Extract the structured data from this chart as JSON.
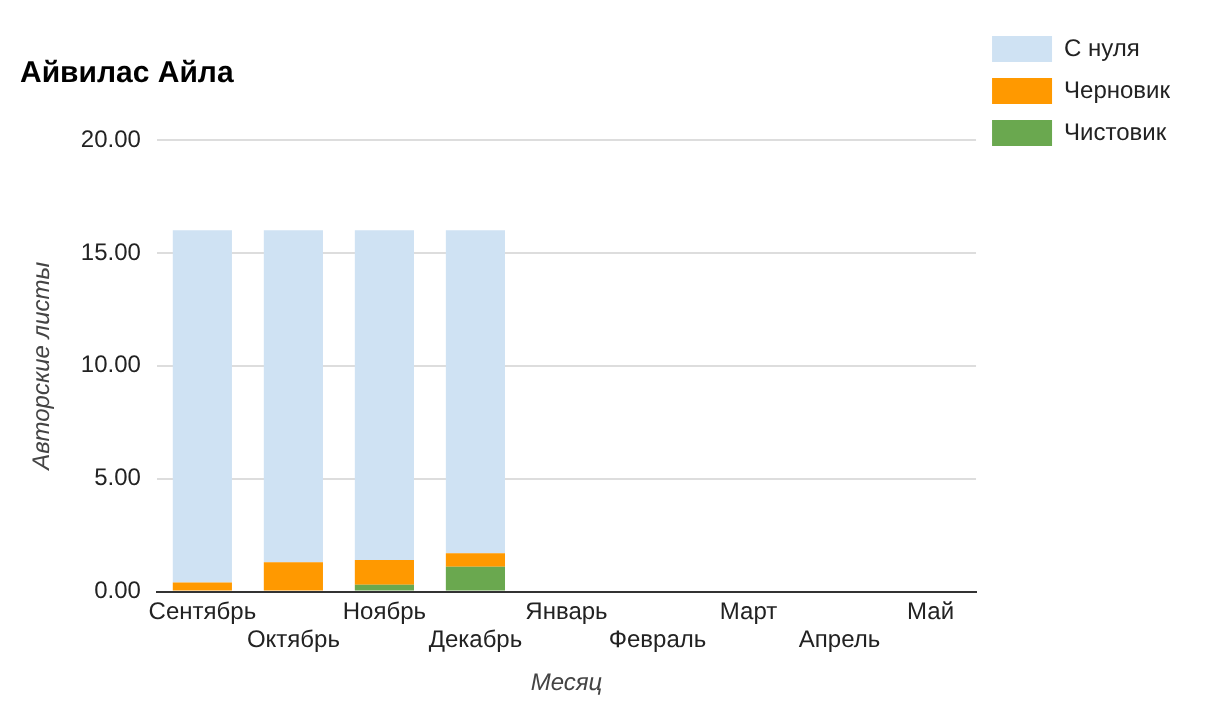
{
  "chart_data": {
    "type": "bar",
    "title": "Айвилас Айла",
    "xlabel": "Месяц",
    "ylabel": "Авторские листы",
    "stacked": true,
    "legend": "top right",
    "grid": "y",
    "categories": [
      "Сентябрь",
      "Октябрь",
      "Ноябрь",
      "Декабрь",
      "Январь",
      "Февраль",
      "Март",
      "Апрель",
      "Май"
    ],
    "series": [
      {
        "name": "Чистовик",
        "color": "#6aa84f",
        "values": [
          0,
          0,
          0.3,
          1.1,
          null,
          null,
          null,
          null,
          null
        ]
      },
      {
        "name": "Черновик",
        "color": "#ff9900",
        "values": [
          0.4,
          1.3,
          1.1,
          0.6,
          null,
          null,
          null,
          null,
          null
        ]
      },
      {
        "name": "С нуля",
        "color": "#cfe2f3",
        "values": [
          15.6,
          14.7,
          14.6,
          14.3,
          null,
          null,
          null,
          null,
          null
        ]
      }
    ],
    "ylim": [
      0,
      20
    ],
    "yticks": [
      {
        "value": 0,
        "label": "0.00"
      },
      {
        "value": 5,
        "label": "5.00"
      },
      {
        "value": 10,
        "label": "10.00"
      },
      {
        "value": 15,
        "label": "15.00"
      },
      {
        "value": 20,
        "label": "20.00"
      }
    ]
  }
}
